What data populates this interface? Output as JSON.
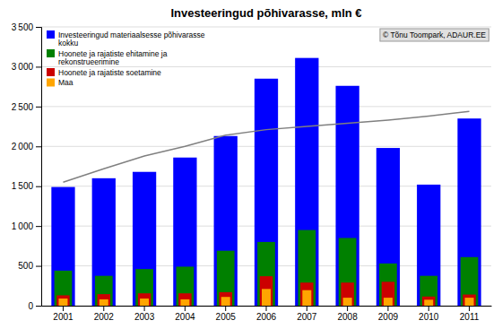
{
  "chart_data": {
    "type": "bar",
    "title": "Investeeringud põhivarasse, mln €",
    "categories": [
      "2001",
      "2002",
      "2003",
      "2004",
      "2005",
      "2006",
      "2007",
      "2008",
      "2009",
      "2010",
      "2011"
    ],
    "series": [
      {
        "name": "Investeeringud materiaalsesse põhivarasse\nkokku",
        "color": "#0000ff",
        "values": [
          1490,
          1600,
          1680,
          1860,
          2130,
          2850,
          3110,
          2760,
          1980,
          1520,
          2350
        ]
      },
      {
        "name": "Hoonete ja rajatiste ehitamine ja\nrekonstrueerimine",
        "color": "#008000",
        "values": [
          440,
          375,
          460,
          490,
          690,
          800,
          950,
          850,
          530,
          375,
          610
        ]
      },
      {
        "name": "Hoonete ja rajatiste soetamine",
        "color": "#cc0000",
        "values": [
          130,
          145,
          155,
          155,
          170,
          370,
          290,
          290,
          300,
          115,
          140
        ]
      },
      {
        "name": "Maa",
        "color": "#ffa500",
        "values": [
          90,
          80,
          90,
          80,
          110,
          210,
          195,
          100,
          100,
          75,
          100
        ]
      },
      {
        "type": "line",
        "color": "#808080",
        "values": [
          1550,
          1720,
          1880,
          2000,
          2140,
          2210,
          2250,
          2290,
          2330,
          2380,
          2440
        ]
      }
    ],
    "annotations": [
      "© Tõnu Toompark, ADAUR.EE"
    ],
    "ylim": [
      0,
      3500
    ],
    "yticks": [
      0,
      500,
      {
        "value": 1000,
        "label": "1 000"
      },
      {
        "value": 1500,
        "label": "1 500"
      },
      {
        "value": 2000,
        "label": "2 000"
      },
      {
        "value": 2500,
        "label": "2 500"
      },
      {
        "value": 3000,
        "label": "3 000"
      },
      {
        "value": 3500,
        "label": "3 500"
      }
    ],
    "grid": true,
    "legend": "upper left"
  }
}
